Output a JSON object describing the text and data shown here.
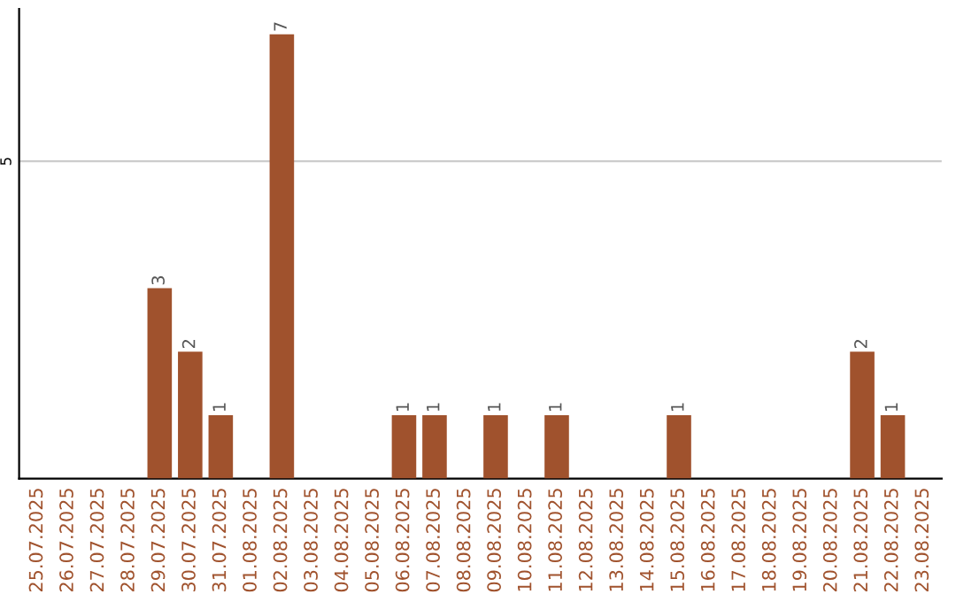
{
  "chart_data": {
    "type": "bar",
    "categories": [
      "25.07.2025",
      "26.07.2025",
      "27.07.2025",
      "28.07.2025",
      "29.07.2025",
      "30.07.2025",
      "31.07.2025",
      "01.08.2025",
      "02.08.2025",
      "03.08.2025",
      "04.08.2025",
      "05.08.2025",
      "06.08.2025",
      "07.08.2025",
      "08.08.2025",
      "09.08.2025",
      "10.08.2025",
      "11.08.2025",
      "12.08.2025",
      "13.08.2025",
      "14.08.2025",
      "15.08.2025",
      "16.08.2025",
      "17.08.2025",
      "18.08.2025",
      "19.08.2025",
      "20.08.2025",
      "21.08.2025",
      "22.08.2025",
      "23.08.2025"
    ],
    "values": [
      0,
      0,
      0,
      0,
      3,
      2,
      1,
      0,
      7,
      0,
      0,
      0,
      1,
      1,
      0,
      1,
      0,
      1,
      0,
      0,
      0,
      1,
      0,
      0,
      0,
      0,
      0,
      2,
      1,
      0
    ],
    "value_labels": [
      null,
      null,
      null,
      null,
      "3",
      "2",
      "1",
      null,
      "7",
      null,
      null,
      null,
      "1",
      "1",
      null,
      "1",
      null,
      "1",
      null,
      null,
      null,
      "1",
      null,
      null,
      null,
      null,
      null,
      "2",
      "1",
      null
    ],
    "color": "#a0522d",
    "ylim": [
      0,
      7.4
    ],
    "yticks": [
      5
    ],
    "grid": "y"
  }
}
